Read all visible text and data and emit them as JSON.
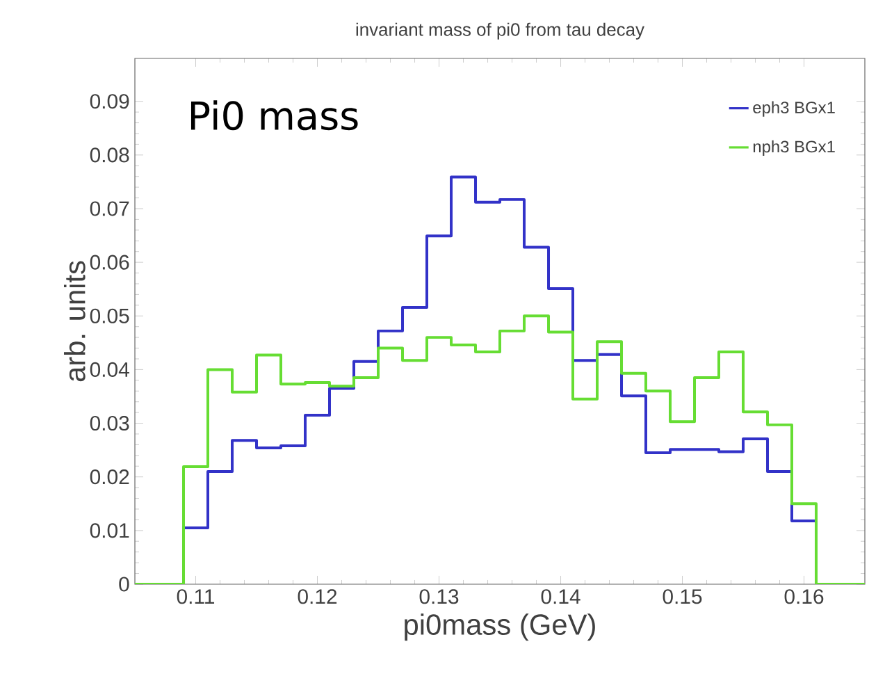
{
  "chart_data": {
    "type": "histogram",
    "title": "invariant mass of pi0 from tau decay",
    "xlabel": "pi0mass (GeV)",
    "ylabel": "arb. units",
    "annotations": [
      "Pi0 mass"
    ],
    "bins": [
      0.105,
      0.107,
      0.109,
      0.111,
      0.113,
      0.115,
      0.117,
      0.119,
      0.121,
      0.123,
      0.125,
      0.127,
      0.129,
      0.131,
      0.133,
      0.135,
      0.137,
      0.139,
      0.141,
      0.143,
      0.145,
      0.147,
      0.149,
      0.151,
      0.153,
      0.155,
      0.157,
      0.159,
      0.161,
      0.163,
      0.165
    ],
    "series": [
      {
        "name": "eph3 BGx1",
        "color": "#3232c8",
        "values": [
          0,
          0,
          0.0105,
          0.021,
          0.0268,
          0.0254,
          0.0258,
          0.0315,
          0.0365,
          0.0415,
          0.0472,
          0.0516,
          0.0649,
          0.0759,
          0.0712,
          0.0717,
          0.0628,
          0.0551,
          0.0417,
          0.0428,
          0.0351,
          0.0245,
          0.0251,
          0.0251,
          0.0247,
          0.0271,
          0.021,
          0.0118,
          0,
          0
        ]
      },
      {
        "name": "nph3 BGx1",
        "color": "#66dd33",
        "values": [
          0,
          0,
          0.0219,
          0.04,
          0.0358,
          0.0427,
          0.0373,
          0.0376,
          0.0369,
          0.0385,
          0.044,
          0.0417,
          0.046,
          0.0446,
          0.0433,
          0.0472,
          0.05,
          0.047,
          0.0345,
          0.0452,
          0.0393,
          0.036,
          0.0303,
          0.0385,
          0.0433,
          0.0321,
          0.0297,
          0.015,
          0,
          0
        ]
      }
    ],
    "xlim": [
      0.105,
      0.165
    ],
    "ylim": [
      0,
      0.098
    ],
    "xticks": [
      0.11,
      0.12,
      0.13,
      0.14,
      0.15,
      0.16
    ],
    "yticks": [
      0,
      0.01,
      0.02,
      0.03,
      0.04,
      0.05,
      0.06,
      0.07,
      0.08,
      0.09
    ],
    "legend": "top right",
    "grid": false
  }
}
